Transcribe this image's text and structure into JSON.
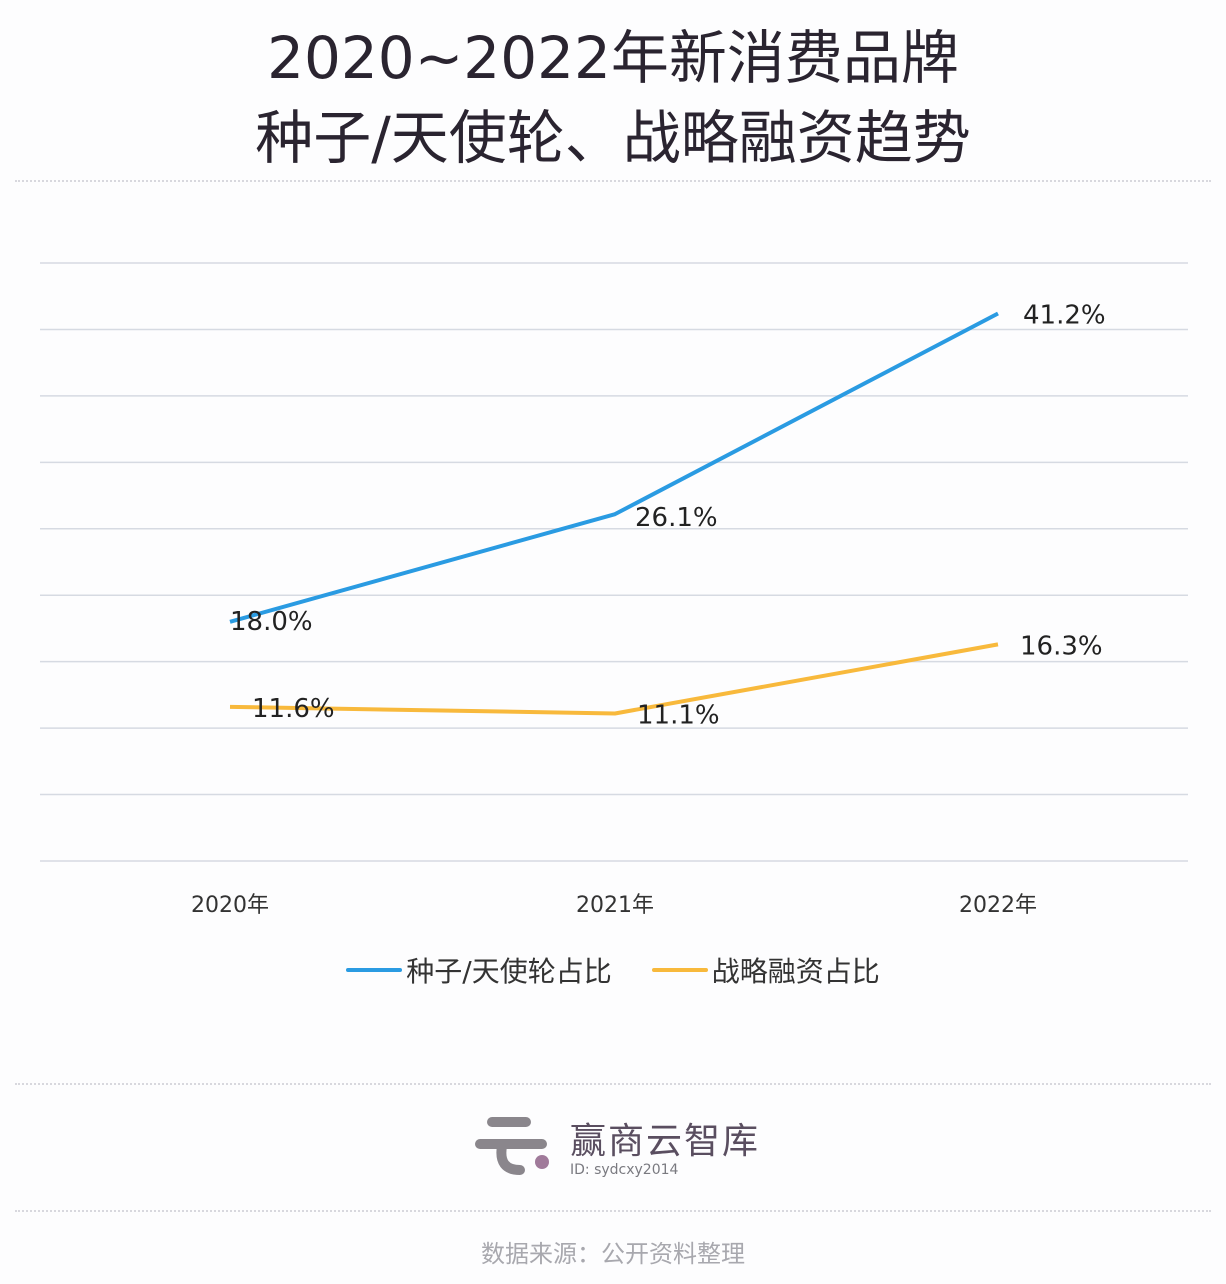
{
  "title_line1": "2020~2022年新消费品牌",
  "title_line2": "种子/天使轮、战略融资趋势",
  "chart_data": {
    "type": "line",
    "categories": [
      "2020年",
      "2021年",
      "2022年"
    ],
    "series": [
      {
        "name": "种子/天使轮占比",
        "values": [
          18.0,
          26.1,
          41.2
        ],
        "labels": [
          "18.0%",
          "26.1%",
          "41.2%"
        ],
        "color": "#2a9be2"
      },
      {
        "name": "战略融资占比",
        "values": [
          11.6,
          11.1,
          16.3
        ],
        "labels": [
          "11.6%",
          "11.1%",
          "16.3%"
        ],
        "color": "#f8b93c"
      }
    ],
    "ylim": [
      0,
      45
    ],
    "grid": true,
    "legend": "bottom"
  },
  "brand": {
    "name": "赢商云智库",
    "id": "ID: sydcxy2014"
  },
  "source": "数据来源：公开资料整理"
}
